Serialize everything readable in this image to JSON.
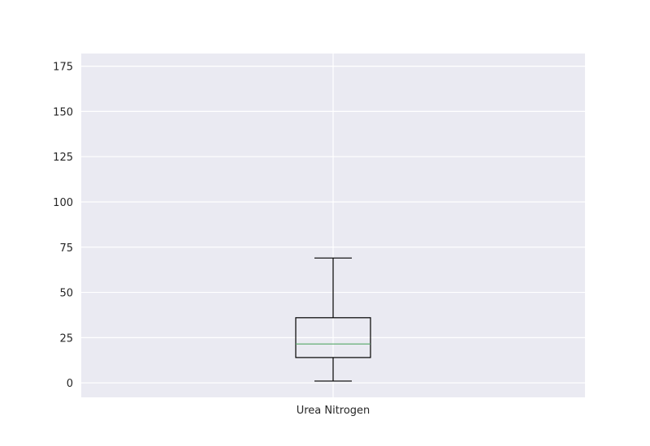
{
  "chart_data": {
    "type": "box",
    "title": "",
    "xlabel": "",
    "ylabel": "",
    "categories": [
      "Urea Nitrogen"
    ],
    "ylim": [
      -8,
      182
    ],
    "yticks": [
      0,
      25,
      50,
      75,
      100,
      125,
      150,
      175
    ],
    "grid": true,
    "boxes": [
      {
        "label": "Urea Nitrogen",
        "whisker_low": 1,
        "q1": 14,
        "median": 21.5,
        "q3": 36,
        "whisker_high": 69
      }
    ],
    "colors": {
      "background": "#eaeaf2",
      "grid": "#ffffff",
      "box": "#000000",
      "median": "#55a868"
    }
  }
}
